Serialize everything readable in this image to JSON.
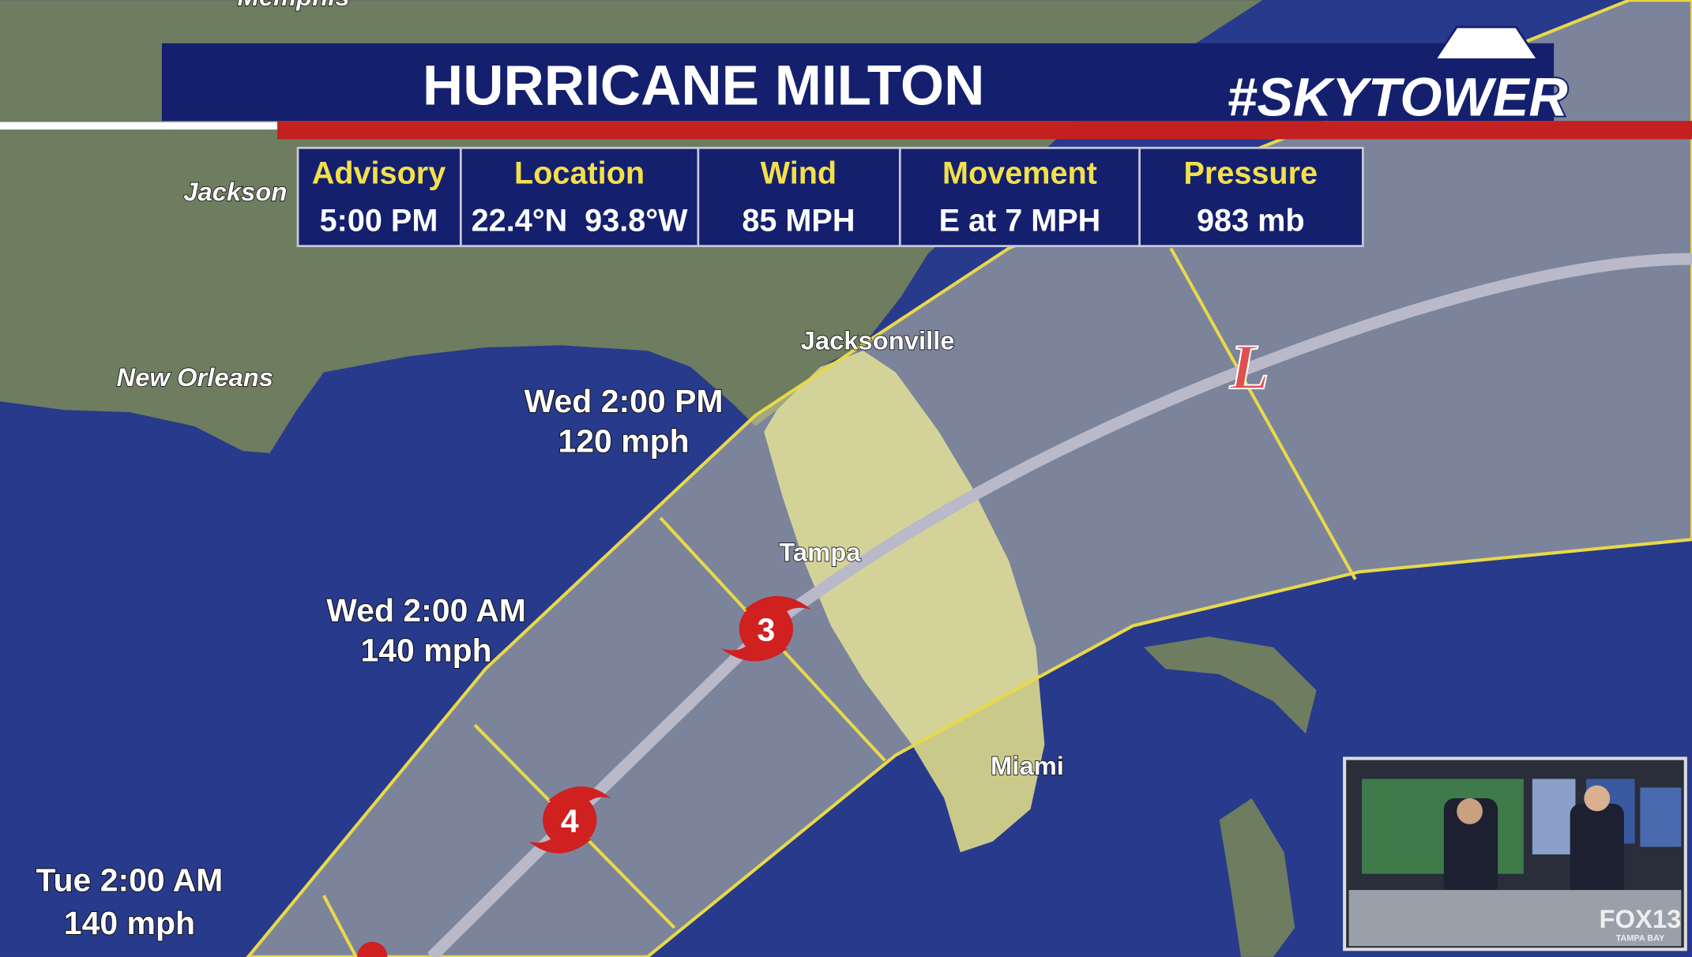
{
  "header": {
    "title": "HURRICANE MILTON",
    "brand": "#SKYTOWER"
  },
  "advisory_table": {
    "columns": [
      {
        "heading": "Advisory",
        "value": "5:00 PM"
      },
      {
        "heading": "Location",
        "value": "22.4°N  93.8°W"
      },
      {
        "heading": "Wind",
        "value": "85 MPH"
      },
      {
        "heading": "Movement",
        "value": "E at 7 MPH"
      },
      {
        "heading": "Pressure",
        "value": "983 mb"
      }
    ]
  },
  "map": {
    "cities": [
      {
        "label": "Memphis"
      },
      {
        "label": "Jackson"
      },
      {
        "label": "New Orleans"
      },
      {
        "label": "Jacksonville"
      },
      {
        "label": "Tampa"
      },
      {
        "label": "Miami"
      }
    ],
    "forecast_points": [
      {
        "time": "Wed 2:00 PM",
        "wind": "120 mph"
      },
      {
        "time": "Wed 2:00 AM",
        "wind": "140 mph"
      },
      {
        "time": "Tue 2:00 AM",
        "wind": "140 mph"
      }
    ],
    "storm_markers": [
      {
        "category": 3
      },
      {
        "category": 4
      }
    ],
    "low_marker": "L"
  },
  "inset": {
    "logo": "FOX13",
    "sublogo": "TAMPA BAY"
  }
}
